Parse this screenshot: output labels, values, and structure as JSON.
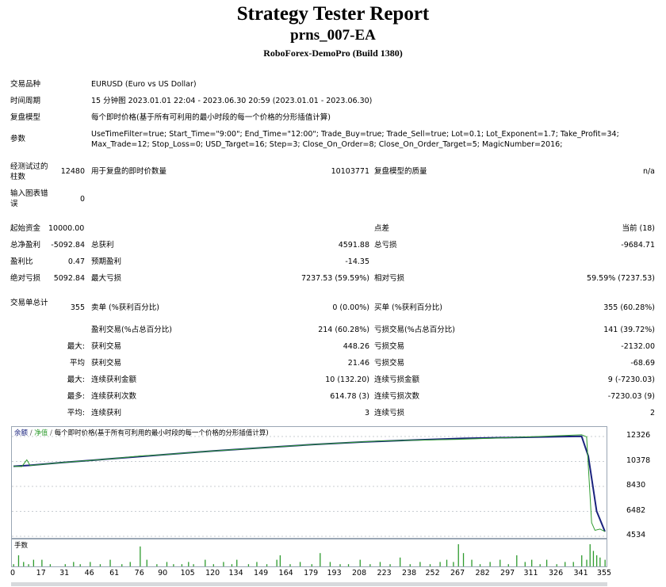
{
  "header": {
    "title": "Strategy Tester Report",
    "ea_name": "prns_007-EA",
    "build": "RoboForex-DemoPro (Build 1380)"
  },
  "info": {
    "symbol_label": "交易品种",
    "symbol_value": "EURUSD (Euro vs US Dollar)",
    "period_label": "时间周期",
    "period_value": "15 分钟图 2023.01.01 22:04 - 2023.06.30 20:59 (2023.01.01 - 2023.06.30)",
    "model_label": "复盘模型",
    "model_value": "每个即时价格(基于所有可利用的最小时段的每一个价格的分形插值计算)",
    "params_label": "参数",
    "params_line1": "UseTimeFilter=true; Start_Time=\"9:00\"; End_Time=\"12:00\"; Trade_Buy=true; Trade_Sell=true; Lot=0.1; Lot_Exponent=1.7; Take_Profit=34;",
    "params_line2": "Max_Trade=12; Stop_Loss=0; USD_Target=16; Step=3; Close_On_Order=8; Close_On_Order_Target=5; MagicNumber=2016;"
  },
  "stats": {
    "bars_label": "经测试过的柱数",
    "bars_value": "12480",
    "ticks_label": "用于复盘的即时价数量",
    "ticks_value": "10103771",
    "quality_label": "复盘模型的质量",
    "quality_value": "n/a",
    "mismatch_label": "输入图表错误",
    "mismatch_value": "0",
    "deposit_label": "起始资金",
    "deposit_value": "10000.00",
    "spread_label": "点差",
    "spread_value": "当前 (18)",
    "net_label": "总净盈利",
    "net_value": "-5092.84",
    "gross_profit_label": "总获利",
    "gross_profit_value": "4591.88",
    "gross_loss_label": "总亏损",
    "gross_loss_value": "-9684.71",
    "pf_label": "盈利比",
    "pf_value": "0.47",
    "expected_label": "预期盈利",
    "expected_value": "-14.35",
    "abs_dd_label": "绝对亏损",
    "abs_dd_value": "5092.84",
    "max_dd_label": "最大亏损",
    "max_dd_value": "7237.53 (59.59%)",
    "rel_dd_label": "相对亏损",
    "rel_dd_value": "59.59% (7237.53)",
    "trades_label": "交易单总计",
    "trades_value": "355",
    "short_label": "卖单 (%获利百分比)",
    "short_value": "0 (0.00%)",
    "long_label": "买单 (%获利百分比)",
    "long_value": "355 (60.28%)",
    "profit_trades_label": "盈利交易(%占总百分比)",
    "profit_trades_value": "214 (60.28%)",
    "loss_trades_label": "亏损交易(%占总百分比)",
    "loss_trades_value": "141 (39.72%)",
    "largest_prefix": "最大:",
    "largest_profit_label": "获利交易",
    "largest_profit_value": "448.26",
    "largest_loss_label": "亏损交易",
    "largest_loss_value": "-2132.00",
    "average_prefix": "平均",
    "avg_profit_label": "获利交易",
    "avg_profit_value": "21.46",
    "avg_loss_label": "亏损交易",
    "avg_loss_value": "-68.69",
    "max_prefix": "最大:",
    "max_cons_wins_label": "连续获利金额",
    "max_cons_wins_value": "10 (132.20)",
    "max_cons_losses_label": "连续亏损金额",
    "max_cons_losses_value": "9 (-7230.03)",
    "most_prefix": "最多:",
    "max_cons_profit_label": "连续获利次数",
    "max_cons_profit_value": "614.78 (3)",
    "max_cons_loss_label": "连续亏损次数",
    "max_cons_loss_value": "-7230.03 (9)",
    "avg_cons_prefix": "平均:",
    "avg_cons_wins_label": "连续获利",
    "avg_cons_wins_value": "3",
    "avg_cons_losses_label": "连续亏损",
    "avg_cons_losses_value": "2"
  },
  "chart_data": [
    {
      "type": "line",
      "legend": {
        "balance": "余额",
        "equity": "净值",
        "text": "每个即时价格(基于所有可利用的最小时段的每一个价格的分形插值计算)"
      },
      "colors": {
        "balance": "#1a237e",
        "equity": "#2e9b2e"
      },
      "yticks": [
        "12326",
        "10378",
        "8430",
        "6482",
        "4534"
      ],
      "ylim": [
        4534,
        12326
      ],
      "xlim": [
        0,
        355
      ],
      "series": [
        {
          "name": "余额",
          "x": [
            0,
            10,
            30,
            60,
            90,
            120,
            150,
            180,
            210,
            240,
            270,
            300,
            330,
            341,
            345,
            350,
            355
          ],
          "values": [
            10000,
            10080,
            10300,
            10600,
            10900,
            11200,
            11450,
            11700,
            11900,
            12050,
            12180,
            12250,
            12320,
            12340,
            10800,
            6500,
            4907
          ]
        },
        {
          "name": "净值",
          "x": [
            0,
            5,
            8,
            10,
            30,
            60,
            76,
            90,
            120,
            180,
            220,
            267,
            300,
            341,
            344,
            347,
            349,
            352,
            355
          ],
          "values": [
            10000,
            9980,
            10500,
            10060,
            10300,
            10600,
            10800,
            10900,
            11200,
            11700,
            11980,
            12100,
            12250,
            12460,
            12300,
            5600,
            5000,
            5100,
            4907
          ]
        }
      ]
    },
    {
      "type": "bar",
      "title": "手数",
      "x": [
        0,
        3,
        6,
        9,
        12,
        17,
        22,
        31,
        36,
        40,
        46,
        52,
        58,
        65,
        70,
        76,
        80,
        86,
        92,
        96,
        101,
        105,
        108,
        115,
        120,
        126,
        131,
        134,
        141,
        146,
        152,
        158,
        160,
        166,
        172,
        179,
        184,
        190,
        196,
        201,
        208,
        214,
        220,
        226,
        232,
        238,
        244,
        250,
        256,
        260,
        264,
        267,
        270,
        275,
        280,
        286,
        292,
        297,
        302,
        307,
        311,
        316,
        320,
        326,
        331,
        336,
        341,
        344,
        346,
        348,
        350,
        352,
        355
      ],
      "values": [
        0.1,
        0.5,
        0.2,
        0.1,
        0.3,
        0.3,
        0.1,
        0.1,
        0.2,
        0.1,
        0.2,
        0.1,
        0.3,
        0.1,
        0.2,
        0.9,
        0.3,
        0.1,
        0.2,
        0.1,
        0.1,
        0.2,
        0.1,
        0.3,
        0.1,
        0.2,
        0.1,
        0.3,
        0.1,
        0.2,
        0.1,
        0.3,
        0.5,
        0.1,
        0.2,
        0.1,
        0.6,
        0.2,
        0.1,
        0.1,
        0.3,
        0.1,
        0.2,
        0.1,
        0.4,
        0.1,
        0.2,
        0.1,
        0.2,
        0.3,
        0.2,
        1.0,
        0.6,
        0.3,
        0.1,
        0.2,
        0.3,
        0.1,
        0.5,
        0.2,
        0.3,
        0.1,
        0.3,
        0.1,
        0.2,
        0.2,
        0.5,
        0.3,
        1.0,
        0.7,
        0.5,
        0.4,
        0.3
      ]
    }
  ],
  "xticks": [
    "0",
    "17",
    "31",
    "46",
    "61",
    "76",
    "90",
    "105",
    "120",
    "134",
    "149",
    "164",
    "179",
    "193",
    "208",
    "223",
    "238",
    "252",
    "267",
    "282",
    "297",
    "311",
    "326",
    "341",
    "355"
  ]
}
